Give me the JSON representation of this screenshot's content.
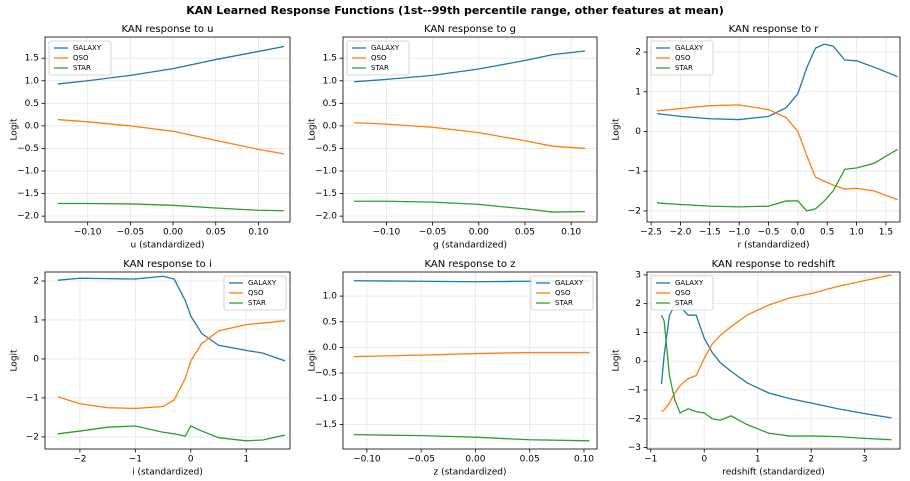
{
  "title": "KAN Learned Response Functions (1st--99th percentile range, other features at mean)",
  "chart_data": [
    {
      "type": "line",
      "title": "KAN response to u",
      "x_label": "u (standardized)",
      "y_label": "Logit",
      "grid": true,
      "legend": "upper left",
      "x": [
        -0.135,
        -0.1,
        -0.05,
        0,
        0.05,
        0.1,
        0.13
      ],
      "series": [
        {
          "name": "GALAXY",
          "color": "#1f77b4",
          "values": [
            0.93,
            1.0,
            1.12,
            1.27,
            1.47,
            1.65,
            1.76
          ]
        },
        {
          "name": "QSO",
          "color": "#ff7f0e",
          "values": [
            0.14,
            0.09,
            0.0,
            -0.12,
            -0.32,
            -0.52,
            -0.62
          ]
        },
        {
          "name": "STAR",
          "color": "#2ca02c",
          "values": [
            -1.72,
            -1.72,
            -1.73,
            -1.76,
            -1.82,
            -1.87,
            -1.88
          ]
        }
      ],
      "xlim": [
        -0.15,
        0.137
      ],
      "ylim": [
        -2.13,
        1.97
      ],
      "xticks": [
        {
          "value": -0.1,
          "label": "−0.10"
        },
        {
          "value": -0.05,
          "label": "−0.05"
        },
        {
          "value": 0,
          "label": "0.00"
        },
        0.05,
        {
          "value": 0.1,
          "label": "0.10"
        }
      ],
      "yticks": [
        {
          "value": -2,
          "label": "−2.0"
        },
        {
          "value": -1.5,
          "label": "−1.5"
        },
        {
          "value": -1,
          "label": "−1.0"
        },
        {
          "value": -0.5,
          "label": "−0.5"
        },
        {
          "value": 0,
          "label": "0.0"
        },
        0.5,
        {
          "value": 1,
          "label": "1.0"
        },
        1.5
      ]
    },
    {
      "type": "line",
      "title": "KAN response to g",
      "x_label": "g (standardized)",
      "y_label": "Logit",
      "grid": true,
      "legend": "upper left",
      "x": [
        -0.135,
        -0.1,
        -0.05,
        0,
        0.05,
        0.08,
        0.115
      ],
      "series": [
        {
          "name": "GALAXY",
          "color": "#1f77b4",
          "values": [
            0.98,
            1.03,
            1.12,
            1.26,
            1.45,
            1.58,
            1.66
          ]
        },
        {
          "name": "QSO",
          "color": "#ff7f0e",
          "values": [
            0.07,
            0.04,
            -0.03,
            -0.15,
            -0.33,
            -0.45,
            -0.5
          ]
        },
        {
          "name": "STAR",
          "color": "#2ca02c",
          "values": [
            -1.67,
            -1.67,
            -1.69,
            -1.74,
            -1.84,
            -1.91,
            -1.9
          ]
        }
      ],
      "xlim": [
        -0.147,
        0.128
      ],
      "ylim": [
        -2.13,
        1.97
      ],
      "xticks": [
        {
          "value": -0.1,
          "label": "−0.10"
        },
        {
          "value": -0.05,
          "label": "−0.05"
        },
        {
          "value": 0,
          "label": "0.00"
        },
        0.05,
        {
          "value": 0.1,
          "label": "0.10"
        }
      ],
      "yticks": [
        {
          "value": -2,
          "label": "−2.0"
        },
        {
          "value": -1.5,
          "label": "−1.5"
        },
        {
          "value": -1,
          "label": "−1.0"
        },
        {
          "value": -0.5,
          "label": "−0.5"
        },
        {
          "value": 0,
          "label": "0.0"
        },
        0.5,
        {
          "value": 1,
          "label": "1.0"
        },
        1.5
      ]
    },
    {
      "type": "line",
      "title": "KAN response to r",
      "x_label": "r (standardized)",
      "y_label": "Logit",
      "grid": true,
      "legend": "upper left",
      "x": [
        -2.4,
        -2,
        -1.5,
        -1,
        -0.5,
        -0.2,
        0,
        0.15,
        0.3,
        0.45,
        0.6,
        0.8,
        1,
        1.3,
        1.7
      ],
      "series": [
        {
          "name": "GALAXY",
          "color": "#1f77b4",
          "values": [
            0.45,
            0.38,
            0.32,
            0.3,
            0.38,
            0.6,
            0.95,
            1.6,
            2.1,
            2.2,
            2.15,
            1.8,
            1.78,
            1.62,
            1.38
          ]
        },
        {
          "name": "QSO",
          "color": "#ff7f0e",
          "values": [
            0.52,
            0.58,
            0.65,
            0.67,
            0.55,
            0.35,
            0.0,
            -0.6,
            -1.15,
            -1.25,
            -1.35,
            -1.45,
            -1.43,
            -1.5,
            -1.72
          ]
        },
        {
          "name": "STAR",
          "color": "#2ca02c",
          "values": [
            -1.8,
            -1.84,
            -1.88,
            -1.9,
            -1.88,
            -1.75,
            -1.75,
            -2.0,
            -1.95,
            -1.75,
            -1.5,
            -0.95,
            -0.92,
            -0.8,
            -0.45
          ]
        }
      ],
      "xlim": [
        -2.57,
        1.74
      ],
      "ylim": [
        -2.28,
        2.38
      ],
      "xticks": [
        {
          "value": -2.5,
          "label": "−2.5"
        },
        {
          "value": -2,
          "label": "−2.0"
        },
        {
          "value": -1.5,
          "label": "−1.5"
        },
        {
          "value": -1,
          "label": "−1.0"
        },
        {
          "value": -0.5,
          "label": "−0.5"
        },
        {
          "value": 0,
          "label": "0.0"
        },
        0.5,
        {
          "value": 1,
          "label": "1.0"
        },
        1.5
      ],
      "yticks": [
        {
          "value": -2,
          "label": "−2"
        },
        {
          "value": -1,
          "label": "−1"
        },
        0,
        1,
        2
      ]
    },
    {
      "type": "line",
      "title": "KAN response to i",
      "x_label": "i (standardized)",
      "y_label": "Logit",
      "grid": true,
      "legend": "upper right",
      "x": [
        -2.4,
        -2,
        -1.5,
        -1,
        -0.5,
        -0.3,
        -0.1,
        0,
        0.2,
        0.5,
        1,
        1.3,
        1.7
      ],
      "series": [
        {
          "name": "GALAXY",
          "color": "#1f77b4",
          "values": [
            2.02,
            2.07,
            2.06,
            2.05,
            2.12,
            2.05,
            1.5,
            1.1,
            0.65,
            0.35,
            0.22,
            0.15,
            -0.05
          ]
        },
        {
          "name": "QSO",
          "color": "#ff7f0e",
          "values": [
            -0.97,
            -1.15,
            -1.25,
            -1.27,
            -1.22,
            -1.05,
            -0.5,
            -0.05,
            0.4,
            0.72,
            0.88,
            0.92,
            0.98
          ]
        },
        {
          "name": "STAR",
          "color": "#2ca02c",
          "values": [
            -1.92,
            -1.85,
            -1.75,
            -1.72,
            -1.88,
            -1.92,
            -1.98,
            -1.72,
            -1.85,
            -2.02,
            -2.1,
            -2.08,
            -1.95
          ]
        }
      ],
      "xlim": [
        -2.63,
        1.79
      ],
      "ylim": [
        -2.31,
        2.23
      ],
      "xticks": [
        {
          "value": -2,
          "label": "−2"
        },
        {
          "value": -1,
          "label": "−1"
        },
        0,
        1
      ],
      "yticks": [
        {
          "value": -2,
          "label": "−2"
        },
        {
          "value": -1,
          "label": "−1"
        },
        0,
        1,
        2
      ]
    },
    {
      "type": "line",
      "title": "KAN response to z",
      "x_label": "z (standardized)",
      "y_label": "Logit",
      "grid": true,
      "legend": "upper right",
      "x": [
        -0.112,
        -0.05,
        0,
        0.05,
        0.105
      ],
      "series": [
        {
          "name": "GALAXY",
          "color": "#1f77b4",
          "values": [
            1.3,
            1.29,
            1.28,
            1.29,
            1.3
          ]
        },
        {
          "name": "QSO",
          "color": "#ff7f0e",
          "values": [
            -0.18,
            -0.15,
            -0.12,
            -0.1,
            -0.1
          ]
        },
        {
          "name": "STAR",
          "color": "#2ca02c",
          "values": [
            -1.7,
            -1.72,
            -1.75,
            -1.8,
            -1.82
          ]
        }
      ],
      "xlim": [
        -0.122,
        0.112
      ],
      "ylim": [
        -1.98,
        1.47
      ],
      "xticks": [
        {
          "value": -0.1,
          "label": "−0.10"
        },
        {
          "value": -0.05,
          "label": "−0.05"
        },
        {
          "value": 0,
          "label": "0.00"
        },
        0.05,
        {
          "value": 0.1,
          "label": "0.10"
        }
      ],
      "yticks": [
        {
          "value": -1.5,
          "label": "−1.5"
        },
        {
          "value": -1,
          "label": "−1.0"
        },
        {
          "value": -0.5,
          "label": "−0.5"
        },
        {
          "value": 0,
          "label": "0.0"
        },
        0.5,
        {
          "value": 1,
          "label": "1.0"
        }
      ]
    },
    {
      "type": "line",
      "title": "KAN response to redshift",
      "x_label": "redshift (standardized)",
      "y_label": "Logit",
      "grid": true,
      "legend": "upper left",
      "x": [
        -0.8,
        -0.75,
        -0.65,
        -0.55,
        -0.45,
        -0.3,
        -0.15,
        0,
        0.15,
        0.3,
        0.5,
        0.8,
        1.2,
        1.6,
        2,
        2.5,
        3,
        3.5
      ],
      "series": [
        {
          "name": "GALAXY",
          "color": "#1f77b4",
          "values": [
            -0.8,
            0.2,
            1.6,
            1.95,
            1.9,
            1.6,
            1.6,
            0.8,
            0.3,
            -0.05,
            -0.35,
            -0.75,
            -1.1,
            -1.3,
            -1.45,
            -1.65,
            -1.82,
            -1.97
          ]
        },
        {
          "name": "QSO",
          "color": "#ff7f0e",
          "values": [
            -1.75,
            -1.7,
            -1.45,
            -1.1,
            -0.85,
            -0.6,
            -0.5,
            0.1,
            0.6,
            0.9,
            1.2,
            1.6,
            1.95,
            2.2,
            2.35,
            2.6,
            2.8,
            3.0
          ]
        },
        {
          "name": "STAR",
          "color": "#2ca02c",
          "values": [
            1.6,
            1.4,
            -0.5,
            -1.35,
            -1.8,
            -1.65,
            -1.75,
            -1.8,
            -2.0,
            -2.05,
            -1.9,
            -2.2,
            -2.5,
            -2.6,
            -2.6,
            -2.62,
            -2.68,
            -2.73
          ]
        }
      ],
      "xlim": [
        -1.07,
        3.66
      ],
      "ylim": [
        -3.05,
        3.1
      ],
      "xticks": [
        {
          "value": -1,
          "label": "−1"
        },
        0,
        1,
        2,
        3
      ],
      "yticks": [
        {
          "value": -3,
          "label": "−3"
        },
        {
          "value": -2,
          "label": "−2"
        },
        {
          "value": -1,
          "label": "−1"
        },
        0,
        1,
        2,
        3
      ]
    }
  ]
}
